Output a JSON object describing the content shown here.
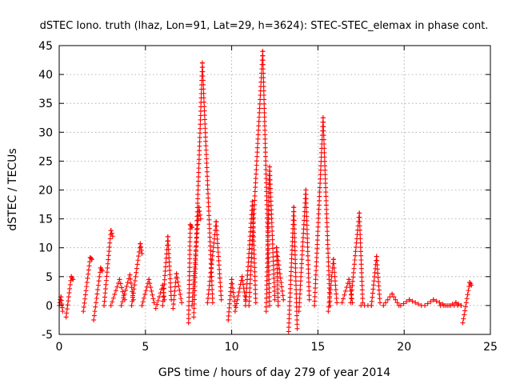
{
  "chart_data": {
    "type": "scatter",
    "title": "dSTEC Iono. truth (lhaz, Lon=91, Lat=29, h=3624): STEC-STEC_elemax in phase cont.",
    "xlabel": "GPS time / hours of day 279 of year 2014",
    "ylabel": "dSTEC  / TECUs",
    "xlim": [
      0,
      25
    ],
    "ylim": [
      -5,
      45
    ],
    "xticks": [
      0,
      5,
      10,
      15,
      20,
      25
    ],
    "yticks": [
      -5,
      0,
      5,
      10,
      15,
      20,
      25,
      30,
      35,
      40,
      45
    ],
    "grid": true,
    "marker": "plus",
    "colors": {
      "series": "#ff0000"
    },
    "arcs": [
      {
        "start": [
          0.0,
          0.0
        ],
        "peak": [
          0.1,
          1.5
        ],
        "end": [
          0.2,
          -1.0
        ]
      },
      {
        "start": [
          0.4,
          -2.0
        ],
        "peak": [
          0.7,
          5.0
        ],
        "end": [
          0.8,
          4.5
        ]
      },
      {
        "start": [
          1.4,
          -1.0
        ],
        "peak": [
          1.8,
          8.3
        ],
        "end": [
          1.9,
          8.0
        ]
      },
      {
        "start": [
          2.0,
          -2.5
        ],
        "peak": [
          2.4,
          6.5
        ],
        "end": [
          2.5,
          6.0
        ]
      },
      {
        "start": [
          2.6,
          0.0
        ],
        "peak": [
          3.0,
          13.0
        ],
        "end": [
          3.1,
          12.0
        ]
      },
      {
        "start": [
          3.0,
          0.0
        ],
        "peak": [
          3.5,
          4.5
        ],
        "end": [
          3.8,
          1.0
        ]
      },
      {
        "start": [
          3.6,
          0.0
        ],
        "peak": [
          4.1,
          5.3
        ],
        "end": [
          4.3,
          1.0
        ]
      },
      {
        "start": [
          4.2,
          0.0
        ],
        "peak": [
          4.7,
          10.7
        ],
        "end": [
          4.8,
          9.0
        ]
      },
      {
        "start": [
          4.8,
          0.0
        ],
        "peak": [
          5.2,
          4.5
        ],
        "end": [
          5.5,
          0.5
        ]
      },
      {
        "start": [
          5.6,
          -0.5
        ],
        "peak": [
          6.0,
          3.5
        ],
        "end": [
          6.1,
          1.0
        ]
      },
      {
        "start": [
          6.0,
          0.0
        ],
        "peak": [
          6.3,
          11.9
        ],
        "end": [
          6.5,
          1.0
        ]
      },
      {
        "start": [
          6.6,
          -0.5
        ],
        "peak": [
          6.8,
          5.5
        ],
        "end": [
          7.1,
          0.5
        ]
      },
      {
        "start": [
          7.5,
          -3.0
        ],
        "peak": [
          7.6,
          14.0
        ],
        "end": [
          7.7,
          13.5
        ]
      },
      {
        "start": [
          7.7,
          0.0
        ],
        "peak": [
          8.1,
          17.0
        ],
        "end": [
          8.2,
          15.0
        ]
      },
      {
        "start": [
          7.8,
          -2.0
        ],
        "peak": [
          8.3,
          42.0
        ],
        "end": [
          8.9,
          0.5
        ]
      },
      {
        "start": [
          8.6,
          0.5
        ],
        "peak": [
          9.1,
          14.5
        ],
        "end": [
          9.4,
          1.0
        ]
      },
      {
        "start": [
          9.8,
          -2.5
        ],
        "peak": [
          10.0,
          4.5
        ],
        "end": [
          10.2,
          0.0
        ]
      },
      {
        "start": [
          10.2,
          -1.0
        ],
        "peak": [
          10.6,
          5.0
        ],
        "end": [
          10.8,
          1.0
        ]
      },
      {
        "start": [
          10.8,
          0.0
        ],
        "peak": [
          11.2,
          18.0
        ],
        "end": [
          11.4,
          0.5
        ]
      },
      {
        "start": [
          11.0,
          0.0
        ],
        "peak": [
          11.8,
          44.0
        ],
        "end": [
          12.2,
          0.0
        ]
      },
      {
        "start": [
          12.0,
          -1.0
        ],
        "peak": [
          12.2,
          24.0
        ],
        "end": [
          12.5,
          1.0
        ]
      },
      {
        "start": [
          12.7,
          0.0
        ],
        "peak": [
          12.6,
          10.0
        ],
        "end": [
          13.0,
          1.0
        ]
      },
      {
        "start": [
          13.3,
          -4.5
        ],
        "peak": [
          13.6,
          17.0
        ],
        "end": [
          13.8,
          -4.0
        ]
      },
      {
        "start": [
          13.9,
          -1.0
        ],
        "peak": [
          14.3,
          20.0
        ],
        "end": [
          14.5,
          1.0
        ]
      },
      {
        "start": [
          14.8,
          0.0
        ],
        "peak": [
          15.3,
          32.5
        ],
        "end": [
          15.7,
          0.0
        ]
      },
      {
        "start": [
          15.6,
          -1.0
        ],
        "peak": [
          15.9,
          8.0
        ],
        "end": [
          16.1,
          0.5
        ]
      },
      {
        "start": [
          16.4,
          0.5
        ],
        "peak": [
          16.8,
          4.5
        ],
        "end": [
          17.0,
          0.5
        ]
      },
      {
        "start": [
          16.9,
          0.5
        ],
        "peak": [
          17.4,
          16.0
        ],
        "end": [
          17.6,
          0.5
        ]
      },
      {
        "start": [
          18.1,
          0.0
        ],
        "peak": [
          18.4,
          8.5
        ],
        "end": [
          18.6,
          0.5
        ]
      },
      {
        "start": [
          18.8,
          0.0
        ],
        "peak": [
          19.3,
          2.0
        ],
        "end": [
          19.7,
          0.0
        ]
      },
      {
        "start": [
          19.8,
          0.0
        ],
        "peak": [
          20.3,
          1.0
        ],
        "end": [
          21.0,
          0.0
        ]
      },
      {
        "start": [
          21.2,
          0.0
        ],
        "peak": [
          21.7,
          1.0
        ],
        "end": [
          22.4,
          0.0
        ]
      },
      {
        "start": [
          22.6,
          0.0
        ],
        "peak": [
          23.0,
          0.5
        ],
        "end": [
          23.3,
          0.0
        ]
      },
      {
        "start": [
          23.4,
          -3.0
        ],
        "peak": [
          23.8,
          4.0
        ],
        "end": [
          23.9,
          3.5
        ]
      }
    ],
    "flat": [
      {
        "x0": 17.5,
        "x1": 18.1,
        "y": 0.0
      },
      {
        "x0": 22.1,
        "x1": 23.3,
        "y": 0.0
      }
    ]
  }
}
